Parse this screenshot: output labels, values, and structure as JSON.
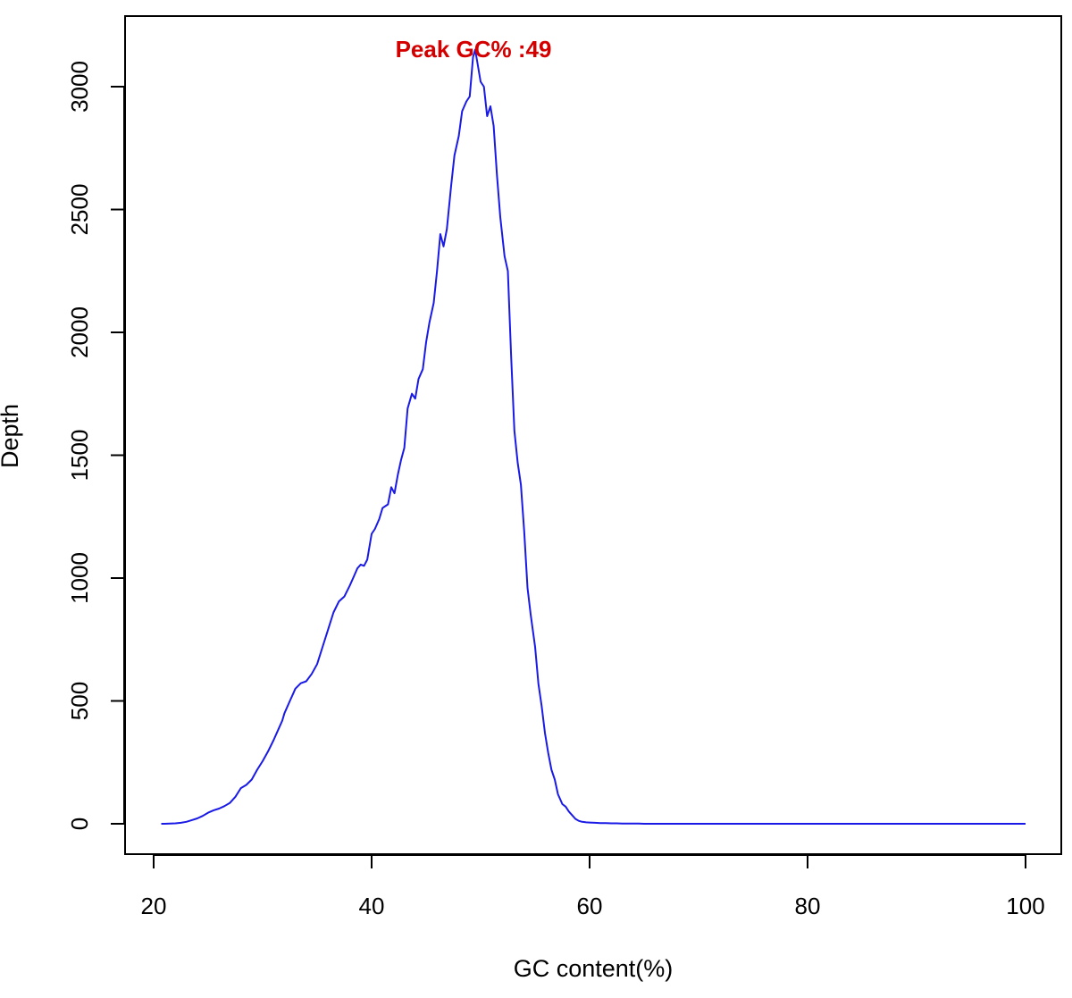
{
  "chart_data": {
    "type": "line",
    "xlabel": "GC content(%)",
    "ylabel": "Depth",
    "xlim": [
      20,
      100
    ],
    "ylim": [
      0,
      3000
    ],
    "x_ticks": [
      "20",
      "40",
      "60",
      "80",
      "100"
    ],
    "y_ticks": [
      "0",
      "500",
      "1000",
      "1500",
      "2000",
      "2500",
      "3000"
    ],
    "annotation": "Peak GC% :49",
    "grid": false,
    "series": [
      {
        "color": "#1a1ae6",
        "x": [
          20.7,
          21.0,
          21.5,
          22.0,
          22.5,
          23.0,
          23.5,
          24.0,
          24.5,
          25.0,
          25.5,
          26.0,
          26.5,
          27.0,
          27.5,
          28.0,
          28.5,
          29.0,
          29.5,
          30.0,
          30.5,
          31.0,
          31.5,
          31.8,
          32.0,
          32.5,
          32.8,
          33.0,
          33.5,
          34.0,
          34.5,
          35.0,
          35.5,
          36.0,
          36.5,
          37.0,
          37.5,
          38.0,
          38.3,
          38.7,
          39.0,
          39.3,
          39.6,
          40.0,
          40.3,
          40.7,
          41.0,
          41.5,
          41.8,
          42.1,
          42.4,
          42.7,
          43.0,
          43.3,
          43.7,
          44.0,
          44.3,
          44.7,
          45.0,
          45.3,
          45.7,
          46.0,
          46.3,
          46.6,
          46.9,
          47.3,
          47.6,
          48.0,
          48.3,
          48.7,
          49.0,
          49.3,
          49.5,
          49.7,
          50.0,
          50.3,
          50.6,
          50.9,
          51.2,
          51.5,
          51.8,
          52.2,
          52.5,
          52.8,
          53.1,
          53.4,
          53.7,
          54.0,
          54.3,
          54.6,
          55.0,
          55.3,
          55.6,
          55.9,
          56.2,
          56.5,
          56.8,
          57.1,
          57.5,
          57.8,
          58.1,
          58.4,
          58.7,
          59.0,
          59.3,
          59.7,
          60.0,
          60.5,
          61.0,
          61.5,
          62.0,
          62.5,
          63.0,
          63.5,
          64.0,
          64.5,
          65.0,
          66.0,
          68.0,
          70.0,
          75.0,
          80.0,
          85.0,
          90.0,
          95.0,
          100.0
        ],
        "values": [
          0,
          0,
          1,
          2,
          4,
          8,
          15,
          22,
          32,
          45,
          55,
          62,
          72,
          85,
          110,
          145,
          158,
          180,
          220,
          255,
          295,
          340,
          390,
          420,
          450,
          500,
          530,
          550,
          572,
          580,
          610,
          650,
          720,
          790,
          860,
          905,
          925,
          970,
          1000,
          1040,
          1055,
          1050,
          1075,
          1180,
          1200,
          1240,
          1285,
          1300,
          1370,
          1345,
          1420,
          1480,
          1530,
          1690,
          1750,
          1730,
          1810,
          1850,
          1960,
          2040,
          2120,
          2250,
          2400,
          2350,
          2420,
          2600,
          2720,
          2800,
          2900,
          2940,
          2960,
          3120,
          3150,
          3100,
          3020,
          3000,
          2880,
          2920,
          2840,
          2640,
          2470,
          2310,
          2250,
          1900,
          1600,
          1470,
          1380,
          1190,
          960,
          850,
          720,
          570,
          480,
          370,
          290,
          220,
          180,
          120,
          80,
          70,
          50,
          35,
          20,
          12,
          8,
          6,
          5,
          4,
          3,
          3,
          2,
          2,
          1,
          1,
          1,
          1,
          0,
          0,
          0,
          0,
          0,
          0,
          0,
          0,
          0,
          0
        ]
      }
    ]
  }
}
